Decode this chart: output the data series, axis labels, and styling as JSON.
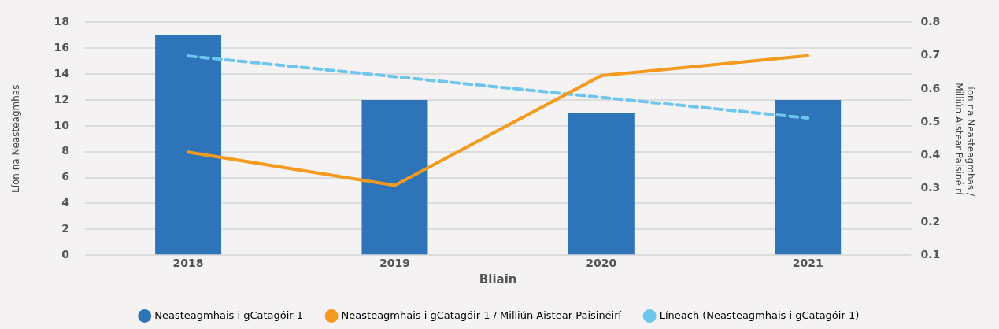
{
  "chart_data": {
    "type": "bar",
    "xlabel": "Bliain",
    "ylabel": "Líon na Neasteagmhas",
    "y2label": "Líon na Neasteagmhas / Milliún Aistear Paisinéirí",
    "categories": [
      "2018",
      "2019",
      "2020",
      "2021"
    ],
    "series": [
      {
        "name": "Neasteagmhais i gCatagóir 1",
        "color": "#2e74b8",
        "values": [
          17,
          12,
          11,
          12
        ]
      },
      {
        "name": "Neasteagmhais i gCatagóir 1 / Milliún Aistear Paisinéirí",
        "type": "line",
        "axis": "y2",
        "color": "#f39a1f",
        "values": [
          0.41,
          0.31,
          0.64,
          0.7
        ]
      },
      {
        "name": "Líneach (Neasteagmhais i gCatagóir 1)",
        "type": "line",
        "line_style": "dashed",
        "color": "#6ec6ee",
        "values": [
          15.4,
          13.8,
          12.2,
          10.6
        ]
      }
    ],
    "ylim": [
      0,
      18
    ],
    "yticks": [
      0,
      2,
      4,
      6,
      8,
      10,
      12,
      14,
      16,
      18
    ],
    "y2lim": [
      0.1,
      0.8
    ],
    "y2ticks": [
      0.1,
      0.2,
      0.3,
      0.4,
      0.5,
      0.6,
      0.7,
      0.8
    ],
    "grid": "y",
    "legend": "bottom",
    "marker": "none"
  }
}
